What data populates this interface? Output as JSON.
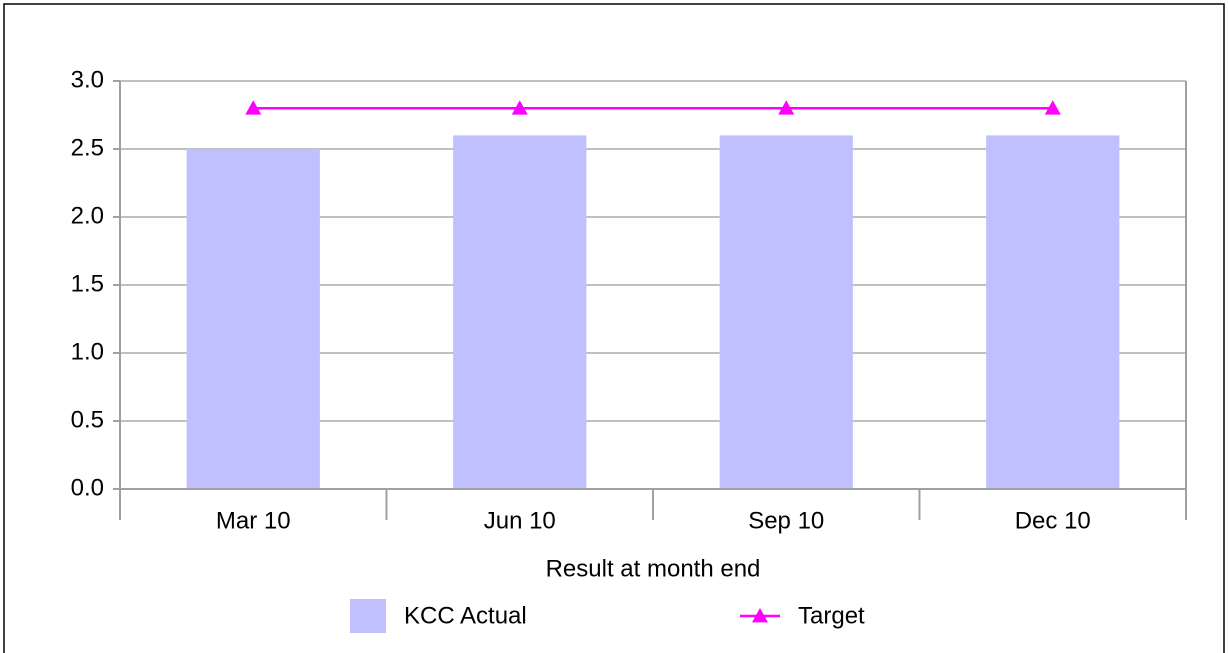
{
  "chart_data": {
    "type": "bar",
    "categories": [
      "Mar 10",
      "Jun 10",
      "Sep 10",
      "Dec 10"
    ],
    "x_label": "Result at month end",
    "series": [
      {
        "name": "KCC Actual",
        "type": "bar",
        "color": "#c0c0ff",
        "values": [
          2.5,
          2.6,
          2.6,
          2.6
        ]
      },
      {
        "name": "Target",
        "type": "line",
        "marker": "triangle",
        "color": "#ff00ff",
        "values": [
          2.8,
          2.8,
          2.8,
          2.8
        ]
      }
    ],
    "ylim": [
      0,
      3
    ],
    "yticks": [
      {
        "value": 0,
        "label": "0.0"
      },
      0.5,
      {
        "value": 1,
        "label": "1.0"
      },
      1.5,
      {
        "value": 2,
        "label": "2.0"
      },
      2.5,
      {
        "value": 3,
        "label": "3.0"
      }
    ],
    "grid": true,
    "legend": "bottom"
  }
}
